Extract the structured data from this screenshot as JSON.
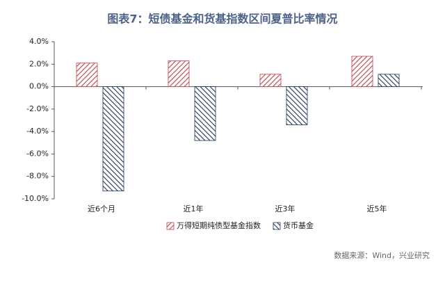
{
  "chart_data": {
    "type": "bar",
    "title": "图表7：短债基金和货基指数区间夏普比率情况",
    "categories": [
      "近6个月",
      "近1年",
      "近3年",
      "近5年"
    ],
    "series": [
      {
        "name": "万得短期纯债型基金指数",
        "color": "#c0404a",
        "values": [
          2.1,
          2.3,
          1.1,
          2.7
        ]
      },
      {
        "name": "货币基金",
        "color": "#1f3358",
        "values": [
          -9.3,
          -4.8,
          -3.4,
          1.1
        ]
      }
    ],
    "ylim": [
      -10,
      4
    ],
    "yticks": [
      {
        "value": -10,
        "label": "-10.0%"
      },
      {
        "value": -8,
        "label": "-8.0%"
      },
      {
        "value": -6,
        "label": "-6.0%"
      },
      {
        "value": -4,
        "label": "-4.0%"
      },
      {
        "value": -2,
        "label": "-2.0%"
      },
      {
        "value": 0,
        "label": "0.0%"
      },
      {
        "value": 2,
        "label": "2.0%"
      },
      {
        "value": 4,
        "label": "4.0%"
      }
    ],
    "source": "数据来源：Wind，兴业研究"
  }
}
